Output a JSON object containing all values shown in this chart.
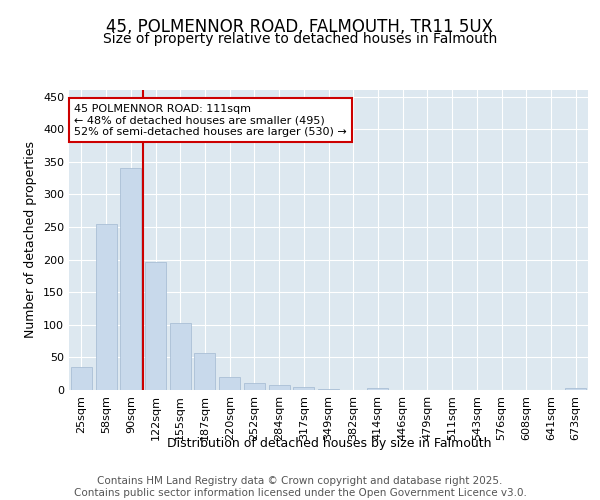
{
  "title": "45, POLMENNOR ROAD, FALMOUTH, TR11 5UX",
  "subtitle": "Size of property relative to detached houses in Falmouth",
  "xlabel": "Distribution of detached houses by size in Falmouth",
  "ylabel": "Number of detached properties",
  "categories": [
    "25sqm",
    "58sqm",
    "90sqm",
    "122sqm",
    "155sqm",
    "187sqm",
    "220sqm",
    "252sqm",
    "284sqm",
    "317sqm",
    "349sqm",
    "382sqm",
    "414sqm",
    "446sqm",
    "479sqm",
    "511sqm",
    "543sqm",
    "576sqm",
    "608sqm",
    "641sqm",
    "673sqm"
  ],
  "values": [
    35,
    255,
    340,
    197,
    103,
    57,
    20,
    10,
    7,
    4,
    1,
    0,
    3,
    0,
    0,
    0,
    0,
    0,
    0,
    0,
    3
  ],
  "bar_color": "#c8d9eb",
  "bar_edge_color": "#aabfd6",
  "marker_line_color": "#cc0000",
  "annotation_text": "45 POLMENNOR ROAD: 111sqm\n← 48% of detached houses are smaller (495)\n52% of semi-detached houses are larger (530) →",
  "annotation_box_color": "#ffffff",
  "annotation_box_edge": "#cc0000",
  "ylim": [
    0,
    460
  ],
  "yticks": [
    0,
    50,
    100,
    150,
    200,
    250,
    300,
    350,
    400,
    450
  ],
  "plot_bg_color": "#dde8f0",
  "fig_bg_color": "#ffffff",
  "grid_color": "#ffffff",
  "footer_text": "Contains HM Land Registry data © Crown copyright and database right 2025.\nContains public sector information licensed under the Open Government Licence v3.0.",
  "title_fontsize": 12,
  "subtitle_fontsize": 10,
  "axis_label_fontsize": 9,
  "tick_fontsize": 8,
  "annotation_fontsize": 8,
  "footer_fontsize": 7.5
}
